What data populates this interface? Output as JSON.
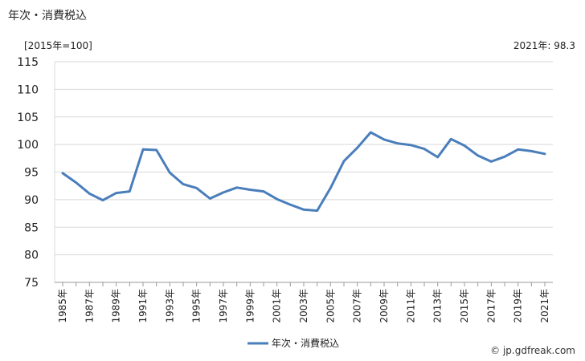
{
  "header": {
    "title": "年次・消費税込",
    "unit": "[2015年=100]",
    "latest": "2021年: 98.3"
  },
  "footer": {
    "credit": "© jp.gdfreak.com"
  },
  "colors": {
    "series": "#4a7ebb",
    "grid": "#d9d9d9",
    "axis": "#999999"
  },
  "chart_data": {
    "type": "line",
    "title": "年次・消費税込",
    "ylabel": "[2015年=100]",
    "ylim": [
      75,
      115
    ],
    "yticks": [
      75,
      80,
      85,
      90,
      95,
      100,
      105,
      110,
      115
    ],
    "grid": true,
    "legend_position": "bottom",
    "x": [
      1985,
      1986,
      1987,
      1988,
      1989,
      1990,
      1991,
      1992,
      1993,
      1994,
      1995,
      1996,
      1997,
      1998,
      1999,
      2000,
      2001,
      2002,
      2003,
      2004,
      2005,
      2006,
      2007,
      2008,
      2009,
      2010,
      2011,
      2012,
      2013,
      2014,
      2015,
      2016,
      2017,
      2018,
      2019,
      2020,
      2021
    ],
    "xtick_labels": [
      "1985年",
      "1987年",
      "1989年",
      "1991年",
      "1993年",
      "1995年",
      "1997年",
      "1999年",
      "2001年",
      "2003年",
      "2005年",
      "2007年",
      "2009年",
      "2011年",
      "2013年",
      "2015年",
      "2017年",
      "2019年",
      "2021年"
    ],
    "series": [
      {
        "name": "年次・消費税込",
        "values": [
          94.8,
          93.1,
          91.1,
          89.9,
          91.2,
          91.5,
          99.1,
          99.0,
          94.9,
          92.8,
          92.1,
          90.2,
          91.3,
          92.2,
          91.8,
          91.5,
          90.1,
          89.1,
          88.2,
          88.0,
          92.1,
          97.0,
          99.4,
          102.2,
          100.9,
          100.2,
          99.9,
          99.2,
          97.7,
          101.0,
          99.8,
          98.0,
          96.9,
          97.8,
          99.1,
          98.8,
          98.3
        ]
      }
    ]
  }
}
